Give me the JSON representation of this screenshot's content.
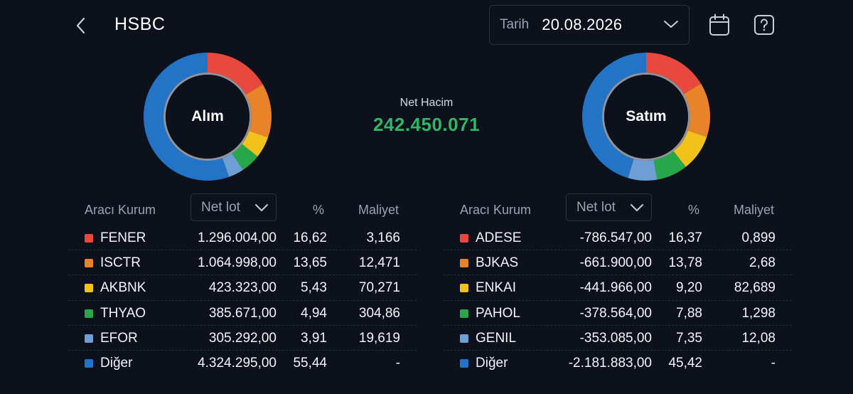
{
  "header": {
    "title": "HSBC",
    "date_label": "Tarih",
    "date_value": "20.08.2026"
  },
  "net_volume": {
    "label": "Net Hacim",
    "value": "242.450.071"
  },
  "colors": {
    "background": "#0d111c",
    "red": "#e8483d",
    "orange": "#e8832a",
    "yellow": "#f1c21b",
    "green": "#27a74a",
    "light_blue": "#6d9fd4",
    "blue": "#2374c6",
    "positive": "#2fb766"
  },
  "buy": {
    "center_label": "Alım",
    "columns": {
      "broker": "Aracı Kurum",
      "net_lot": "Net lot",
      "pct": "%",
      "cost": "Maliyet"
    },
    "rows": [
      {
        "name": "FENER",
        "net_lot": "1.296.004,00",
        "pct": "16,62",
        "cost": "3,166",
        "color": "#e8483d"
      },
      {
        "name": "ISCTR",
        "net_lot": "1.064.998,00",
        "pct": "13,65",
        "cost": "12,471",
        "color": "#e8832a"
      },
      {
        "name": "AKBNK",
        "net_lot": "423.323,00",
        "pct": "5,43",
        "cost": "70,271",
        "color": "#f1c21b"
      },
      {
        "name": "THYAO",
        "net_lot": "385.671,00",
        "pct": "4,94",
        "cost": "304,86",
        "color": "#27a74a"
      },
      {
        "name": "EFOR",
        "net_lot": "305.292,00",
        "pct": "3,91",
        "cost": "19,619",
        "color": "#6d9fd4"
      },
      {
        "name": "Diğer",
        "net_lot": "4.324.295,00",
        "pct": "55,44",
        "cost": "-",
        "color": "#2374c6"
      }
    ],
    "donut_values": [
      16.62,
      13.65,
      5.43,
      4.94,
      3.91,
      55.44
    ]
  },
  "sell": {
    "center_label": "Satım",
    "columns": {
      "broker": "Aracı Kurum",
      "net_lot": "Net lot",
      "pct": "%",
      "cost": "Maliyet"
    },
    "rows": [
      {
        "name": "ADESE",
        "net_lot": "-786.547,00",
        "pct": "16,37",
        "cost": "0,899",
        "color": "#e8483d"
      },
      {
        "name": "BJKAS",
        "net_lot": "-661.900,00",
        "pct": "13,78",
        "cost": "2,68",
        "color": "#e8832a"
      },
      {
        "name": "ENKAI",
        "net_lot": "-441.966,00",
        "pct": "9,20",
        "cost": "82,689",
        "color": "#f1c21b"
      },
      {
        "name": "PAHOL",
        "net_lot": "-378.564,00",
        "pct": "7,88",
        "cost": "1,298",
        "color": "#27a74a"
      },
      {
        "name": "GENIL",
        "net_lot": "-353.085,00",
        "pct": "7,35",
        "cost": "12,08",
        "color": "#6d9fd4"
      },
      {
        "name": "Diğer",
        "net_lot": "-2.181.883,00",
        "pct": "45,42",
        "cost": "-",
        "color": "#2374c6"
      }
    ],
    "donut_values": [
      16.37,
      13.78,
      9.2,
      7.88,
      7.35,
      45.42
    ]
  },
  "icons": {
    "back": "chevron-left-icon",
    "date_dropdown": "chevron-down-icon",
    "calendar": "calendar-icon",
    "help": "help-icon",
    "sort": "chevron-down-icon"
  }
}
